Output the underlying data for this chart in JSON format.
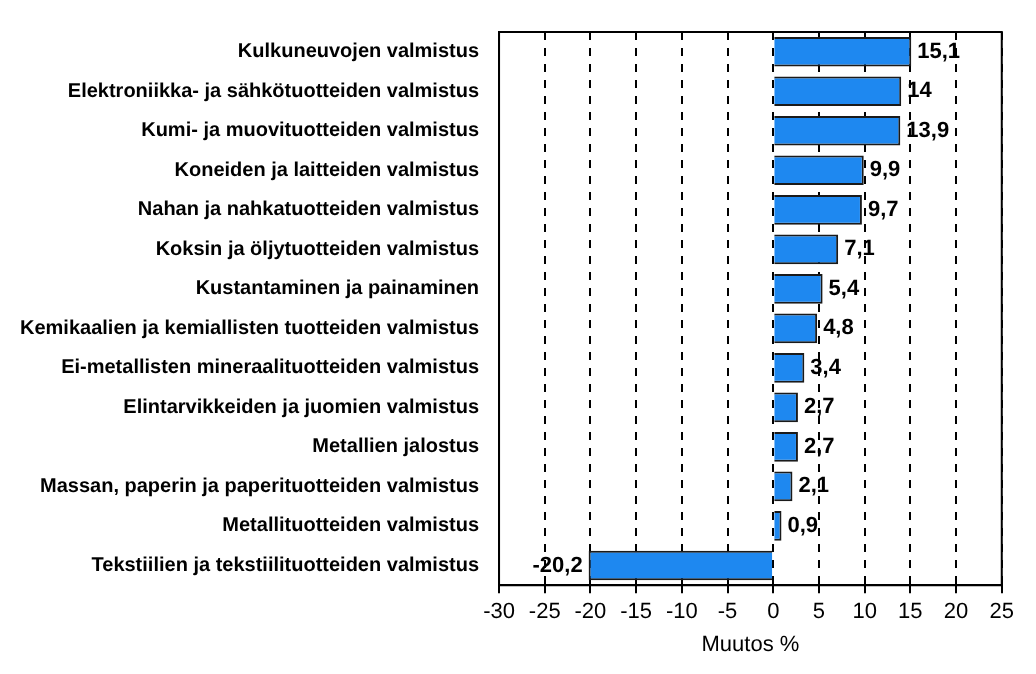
{
  "chart_data": {
    "type": "bar",
    "orientation": "horizontal",
    "xlabel": "Muutos %",
    "categories": [
      "Kulkuneuvojen valmistus",
      "Elektroniikka- ja sähkötuotteiden valmistus",
      "Kumi- ja muovituotteiden valmistus",
      "Koneiden ja laitteiden valmistus",
      "Nahan ja nahkatuotteiden valmistus",
      "Koksin ja öljytuotteiden valmistus",
      "Kustantaminen ja painaminen",
      "Kemikaalien ja kemiallisten tuotteiden valmistus",
      "Ei-metallisten mineraalituotteiden valmistus",
      "Elintarvikkeiden ja juomien valmistus",
      "Metallien jalostus",
      "Massan, paperin ja paperituotteiden valmistus",
      "Metallituotteiden valmistus",
      "Tekstiilien ja tekstiilituotteiden valmistus"
    ],
    "values": [
      15.1,
      14,
      13.9,
      9.9,
      9.7,
      7.1,
      5.4,
      4.8,
      3.4,
      2.7,
      2.7,
      2.1,
      0.9,
      -20.2
    ],
    "value_labels": [
      "15,1",
      "14",
      "13,9",
      "9,9",
      "9,7",
      "7,1",
      "5,4",
      "4,8",
      "3,4",
      "2,7",
      "2,7",
      "2,1",
      "0,9",
      "-20,2"
    ],
    "color": "#1e88f0",
    "xlim": [
      -30,
      25
    ],
    "xticks": [
      -30,
      -25,
      -20,
      -15,
      -10,
      -5,
      0,
      5,
      10,
      15,
      20,
      25
    ],
    "grid": "x"
  }
}
